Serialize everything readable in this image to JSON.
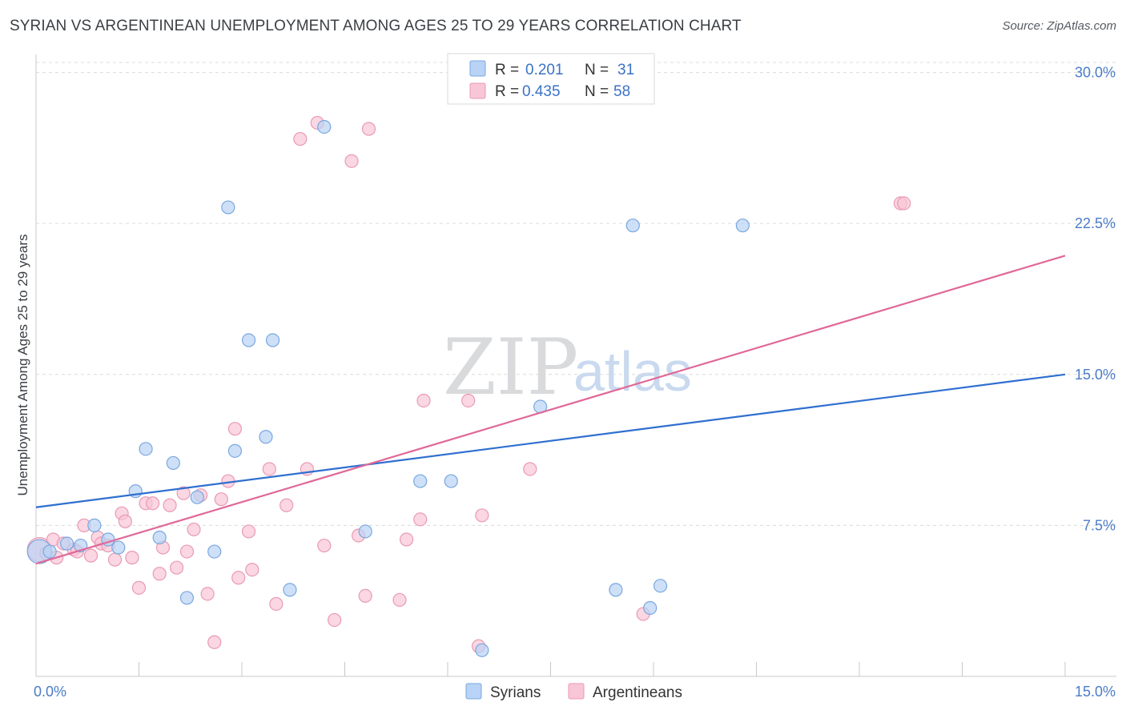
{
  "title": "SYRIAN VS ARGENTINEAN UNEMPLOYMENT AMONG AGES 25 TO 29 YEARS CORRELATION CHART",
  "source": "Source: ZipAtlas.com",
  "watermark": {
    "zip": "ZIP",
    "atlas": "atlas"
  },
  "colors": {
    "syrians_fill": "#b8d3f5",
    "syrians_stroke": "#7aa7df",
    "syrians_line": "#2f6fd0",
    "argentineans_fill": "#f8c6d6",
    "argentineans_stroke": "#e99ab5",
    "argentineans_line": "#e06898",
    "tick_text": "#4a7cc7",
    "grid": "#dcdcdc"
  },
  "stats_legend": [
    {
      "series": "Syrians",
      "r_label": "R =",
      "r_value": "0.201",
      "n_label": "N =",
      "n_value": "31"
    },
    {
      "series": "Argentineans",
      "r_label": "R =",
      "r_value": "0.435",
      "n_label": "N =",
      "n_value": "58"
    }
  ],
  "chart_data": {
    "type": "scatter",
    "title": "SYRIAN VS ARGENTINEAN UNEMPLOYMENT AMONG AGES 25 TO 29 YEARS CORRELATION CHART",
    "xlabel": "",
    "ylabel": "Unemployment Among Ages 25 to 29 years",
    "xlim": [
      0,
      15
    ],
    "ylim": [
      0,
      30.5
    ],
    "x_tick_labels": [
      {
        "value": 0,
        "label": "0.0%"
      },
      {
        "value": 15,
        "label": "15.0%"
      }
    ],
    "y_tick_labels": [
      {
        "value": 7.5,
        "label": "7.5%"
      },
      {
        "value": 15,
        "label": "15.0%"
      },
      {
        "value": 22.5,
        "label": "22.5%"
      },
      {
        "value": 30,
        "label": "30.0%"
      }
    ],
    "x_minor_ticks": [
      1.5,
      3.0,
      4.5,
      6.0,
      7.5,
      9.0,
      10.5,
      12.0,
      13.5,
      15.0
    ],
    "grid": true,
    "legend": "bottom-center",
    "series": [
      {
        "name": "Syrians",
        "trend": {
          "x": [
            0,
            15
          ],
          "y": [
            8.4,
            15.0
          ]
        },
        "points": [
          {
            "x": 0.05,
            "y": 6.2,
            "big": true
          },
          {
            "x": 0.2,
            "y": 6.2
          },
          {
            "x": 0.45,
            "y": 6.6
          },
          {
            "x": 0.65,
            "y": 6.5
          },
          {
            "x": 0.85,
            "y": 7.5
          },
          {
            "x": 1.05,
            "y": 6.8
          },
          {
            "x": 1.2,
            "y": 6.4
          },
          {
            "x": 1.45,
            "y": 9.2
          },
          {
            "x": 1.6,
            "y": 11.3
          },
          {
            "x": 1.8,
            "y": 6.9
          },
          {
            "x": 2.0,
            "y": 10.6
          },
          {
            "x": 2.2,
            "y": 3.9
          },
          {
            "x": 2.35,
            "y": 8.9
          },
          {
            "x": 2.6,
            "y": 6.2
          },
          {
            "x": 2.8,
            "y": 23.3
          },
          {
            "x": 2.9,
            "y": 11.2
          },
          {
            "x": 3.1,
            "y": 16.7
          },
          {
            "x": 3.35,
            "y": 11.9
          },
          {
            "x": 3.45,
            "y": 16.7
          },
          {
            "x": 3.7,
            "y": 4.3
          },
          {
            "x": 4.2,
            "y": 27.3
          },
          {
            "x": 4.8,
            "y": 7.2
          },
          {
            "x": 5.6,
            "y": 9.7
          },
          {
            "x": 6.05,
            "y": 9.7
          },
          {
            "x": 6.5,
            "y": 1.3
          },
          {
            "x": 7.35,
            "y": 13.4
          },
          {
            "x": 8.45,
            "y": 4.3
          },
          {
            "x": 8.7,
            "y": 22.4
          },
          {
            "x": 8.95,
            "y": 3.4
          },
          {
            "x": 9.1,
            "y": 4.5
          },
          {
            "x": 10.3,
            "y": 22.4
          }
        ]
      },
      {
        "name": "Argentineans",
        "trend": {
          "x": [
            0,
            15
          ],
          "y": [
            5.6,
            20.9
          ]
        },
        "points": [
          {
            "x": 0.05,
            "y": 6.3,
            "big": true
          },
          {
            "x": 0.15,
            "y": 6.1
          },
          {
            "x": 0.25,
            "y": 6.8
          },
          {
            "x": 0.4,
            "y": 6.6
          },
          {
            "x": 0.55,
            "y": 6.3
          },
          {
            "x": 0.6,
            "y": 6.2
          },
          {
            "x": 0.7,
            "y": 7.5
          },
          {
            "x": 0.8,
            "y": 6.0
          },
          {
            "x": 0.9,
            "y": 6.9
          },
          {
            "x": 0.95,
            "y": 6.6
          },
          {
            "x": 1.05,
            "y": 6.5
          },
          {
            "x": 1.15,
            "y": 5.8
          },
          {
            "x": 1.25,
            "y": 8.1
          },
          {
            "x": 1.3,
            "y": 7.7
          },
          {
            "x": 1.4,
            "y": 5.9
          },
          {
            "x": 1.5,
            "y": 4.4
          },
          {
            "x": 1.6,
            "y": 8.6
          },
          {
            "x": 1.7,
            "y": 8.6
          },
          {
            "x": 1.8,
            "y": 5.1
          },
          {
            "x": 1.85,
            "y": 6.4
          },
          {
            "x": 1.95,
            "y": 8.5
          },
          {
            "x": 2.05,
            "y": 5.4
          },
          {
            "x": 2.15,
            "y": 9.1
          },
          {
            "x": 2.2,
            "y": 6.2
          },
          {
            "x": 2.3,
            "y": 7.3
          },
          {
            "x": 2.4,
            "y": 9.0
          },
          {
            "x": 2.5,
            "y": 4.1
          },
          {
            "x": 2.6,
            "y": 1.7
          },
          {
            "x": 2.7,
            "y": 8.8
          },
          {
            "x": 2.8,
            "y": 9.7
          },
          {
            "x": 2.9,
            "y": 12.3
          },
          {
            "x": 2.95,
            "y": 4.9
          },
          {
            "x": 3.1,
            "y": 7.2
          },
          {
            "x": 3.15,
            "y": 5.3
          },
          {
            "x": 3.4,
            "y": 10.3
          },
          {
            "x": 3.5,
            "y": 3.6
          },
          {
            "x": 3.65,
            "y": 8.5
          },
          {
            "x": 3.85,
            "y": 26.7
          },
          {
            "x": 3.95,
            "y": 10.3
          },
          {
            "x": 4.1,
            "y": 27.5
          },
          {
            "x": 4.2,
            "y": 6.5
          },
          {
            "x": 4.35,
            "y": 2.8
          },
          {
            "x": 4.6,
            "y": 25.6
          },
          {
            "x": 4.85,
            "y": 27.2
          },
          {
            "x": 4.7,
            "y": 7.0
          },
          {
            "x": 4.8,
            "y": 4.0
          },
          {
            "x": 5.3,
            "y": 3.8
          },
          {
            "x": 5.4,
            "y": 6.8
          },
          {
            "x": 5.6,
            "y": 7.8
          },
          {
            "x": 5.65,
            "y": 13.7
          },
          {
            "x": 6.3,
            "y": 13.7
          },
          {
            "x": 6.45,
            "y": 1.5
          },
          {
            "x": 6.5,
            "y": 8.0
          },
          {
            "x": 7.2,
            "y": 10.3
          },
          {
            "x": 8.85,
            "y": 3.1
          },
          {
            "x": 12.6,
            "y": 23.5
          },
          {
            "x": 12.65,
            "y": 23.5
          },
          {
            "x": 0.3,
            "y": 5.9
          }
        ]
      }
    ]
  },
  "bottom_legend": [
    {
      "series": "Syrians",
      "label": "Syrians"
    },
    {
      "series": "Argentineans",
      "label": "Argentineans"
    }
  ]
}
